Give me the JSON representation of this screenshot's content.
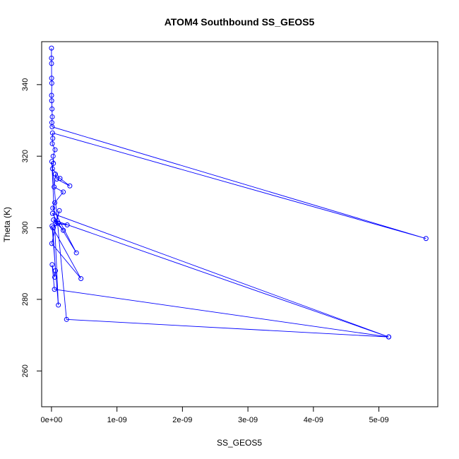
{
  "chart_data": {
    "type": "line",
    "title": "ATOM4 Southbound SS_GEOS5",
    "xlabel": "SS_GEOS5",
    "ylabel": "Theta (K)",
    "xlim": [
      -1.5e-10,
      5.9e-09
    ],
    "ylim": [
      250,
      352
    ],
    "x_ticks": [
      0,
      1e-09,
      2e-09,
      3e-09,
      4e-09,
      5e-09
    ],
    "x_tick_labels": [
      "0e+00",
      "1e-09",
      "2e-09",
      "3e-09",
      "4e-09",
      "5e-09"
    ],
    "y_ticks": [
      260,
      280,
      300,
      320,
      340
    ],
    "y_tick_labels": [
      "260",
      "280",
      "300",
      "320",
      "340"
    ],
    "grid": false,
    "series": [
      {
        "color": "#0000ff",
        "marker": "open-circle",
        "points": [
          {
            "x": 0.0,
            "y": 350.2
          },
          {
            "x": 0.0,
            "y": 347.4
          },
          {
            "x": 1e-12,
            "y": 345.9
          },
          {
            "x": 2e-12,
            "y": 341.8
          },
          {
            "x": 5e-12,
            "y": 340.4
          },
          {
            "x": 1e-12,
            "y": 337.0
          },
          {
            "x": 3e-12,
            "y": 335.5
          },
          {
            "x": 8e-12,
            "y": 333.2
          },
          {
            "x": 1.2e-11,
            "y": 331.0
          },
          {
            "x": 6e-12,
            "y": 329.4
          },
          {
            "x": 1e-11,
            "y": 328.2
          },
          {
            "x": 5.72e-09,
            "y": 297.0
          },
          {
            "x": 1.5e-11,
            "y": 326.5
          },
          {
            "x": 2e-11,
            "y": 325.0
          },
          {
            "x": 1.2e-11,
            "y": 323.5
          },
          {
            "x": 5.5e-11,
            "y": 321.8
          },
          {
            "x": 2.5e-11,
            "y": 320.0
          },
          {
            "x": 3e-11,
            "y": 318.0
          },
          {
            "x": 1.5e-11,
            "y": 316.5
          },
          {
            "x": 1.3e-10,
            "y": 313.8
          },
          {
            "x": 2.8e-10,
            "y": 311.7
          },
          {
            "x": 8e-11,
            "y": 313.6
          },
          {
            "x": 6e-11,
            "y": 315.0
          },
          {
            "x": 4e-11,
            "y": 311.4
          },
          {
            "x": 1.8e-10,
            "y": 310.0
          },
          {
            "x": 5e-11,
            "y": 307.0
          },
          {
            "x": 2e-11,
            "y": 305.5
          },
          {
            "x": 3.8e-10,
            "y": 293.0
          },
          {
            "x": 1.5e-11,
            "y": 304.0
          },
          {
            "x": 5.15e-09,
            "y": 269.5
          },
          {
            "x": 3e-11,
            "y": 302.2
          },
          {
            "x": 1.8e-10,
            "y": 299.3
          },
          {
            "x": 1e-10,
            "y": 301.3
          },
          {
            "x": 2.4e-10,
            "y": 300.8
          },
          {
            "x": 6e-11,
            "y": 301.2
          },
          {
            "x": 1.2e-10,
            "y": 304.8
          },
          {
            "x": 5e-12,
            "y": 295.6
          },
          {
            "x": 4.5e-10,
            "y": 285.8
          },
          {
            "x": 2e-11,
            "y": 300.0
          },
          {
            "x": 6e-11,
            "y": 288.0
          },
          {
            "x": 5e-11,
            "y": 286.2
          },
          {
            "x": 1e-11,
            "y": 289.7
          },
          {
            "x": 4.5e-11,
            "y": 282.8
          },
          {
            "x": 5.15e-09,
            "y": 269.5
          },
          {
            "x": 2.3e-10,
            "y": 274.4
          },
          {
            "x": 5e-12,
            "y": 318.5
          },
          {
            "x": 1.05e-10,
            "y": 278.4
          },
          {
            "x": 8e-12,
            "y": 300.5
          }
        ]
      }
    ]
  }
}
